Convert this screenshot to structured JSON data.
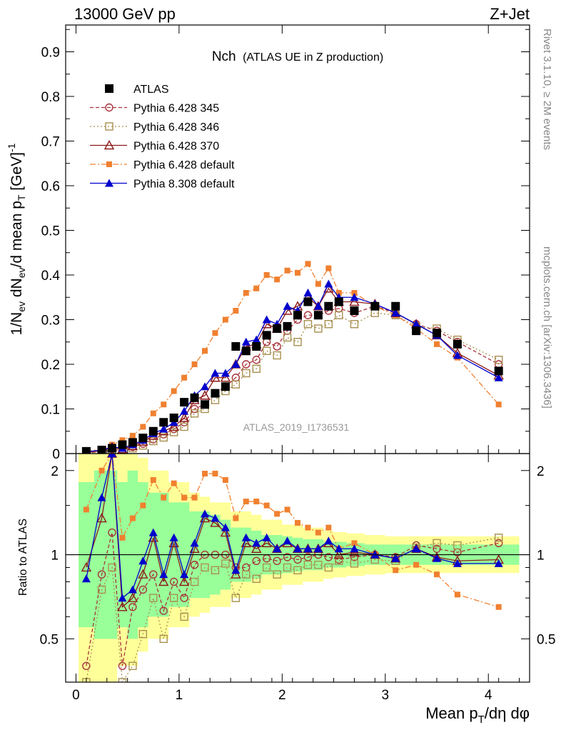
{
  "header": {
    "left": "13000 GeV pp",
    "right": "Z+Jet"
  },
  "side_text": {
    "rivet": "Rivet 3.1.10, ≥ 2M events",
    "mcplots": "mcplots.cern.ch [arXiv:1306.3436]"
  },
  "watermark": "ATLAS_2019_I1736531",
  "chart_data": {
    "type": "scatter",
    "title": "Nch",
    "title_note": "(ATLAS UE in Z production)",
    "ylabel_upper": "1/N_ev dN_ev/d mean p_T [GeV]^-1",
    "ylabel_lower": "Ratio to ATLAS",
    "xlabel": "Mean p_T/dη dφ",
    "xlim": [
      -0.1,
      4.4
    ],
    "ylim_upper": [
      0,
      0.96
    ],
    "ylim_lower": [
      0.35,
      2.3
    ],
    "ratio_scale": "log",
    "xticks": [
      "0",
      "1",
      "2",
      "3",
      "4"
    ],
    "yticks_upper": [
      "0",
      "0.1",
      "0.2",
      "0.3",
      "0.4",
      "0.5",
      "0.6",
      "0.7",
      "0.8",
      "0.9"
    ],
    "yticks_lower": [
      "0.5",
      "1",
      "2"
    ],
    "x": [
      0.1,
      0.25,
      0.35,
      0.45,
      0.55,
      0.65,
      0.75,
      0.85,
      0.95,
      1.05,
      1.15,
      1.25,
      1.35,
      1.45,
      1.55,
      1.65,
      1.75,
      1.85,
      1.95,
      2.05,
      2.15,
      2.25,
      2.35,
      2.45,
      2.55,
      2.7,
      2.9,
      3.1,
      3.3,
      3.5,
      3.7,
      4.1
    ],
    "series": [
      {
        "name": "ATLAS",
        "color": "#000000",
        "marker": "filled-square",
        "values": [
          0.005,
          0.008,
          0.012,
          0.02,
          0.025,
          0.035,
          0.05,
          0.07,
          0.08,
          0.115,
          0.125,
          0.11,
          0.135,
          0.15,
          0.24,
          0.23,
          0.24,
          0.265,
          0.28,
          0.285,
          0.31,
          0.34,
          0.31,
          0.33,
          0.34,
          0.32,
          0.33,
          0.33,
          0.275,
          0.27,
          0.245,
          0.185
        ],
        "ratio": [
          1,
          1,
          1,
          1,
          1,
          1,
          1,
          1,
          1,
          1,
          1,
          1,
          1,
          1,
          1,
          1,
          1,
          1,
          1,
          1,
          1,
          1,
          1,
          1,
          1,
          1,
          1,
          1,
          1,
          1,
          1,
          1
        ]
      },
      {
        "name": "Pythia 6.428 345",
        "color": "#a8343c",
        "marker": "open-circle",
        "values": [
          0.002,
          0.004,
          0.01,
          0.008,
          0.015,
          0.022,
          0.032,
          0.043,
          0.055,
          0.07,
          0.1,
          0.11,
          0.135,
          0.15,
          0.17,
          0.2,
          0.21,
          0.25,
          0.24,
          0.275,
          0.3,
          0.31,
          0.31,
          0.32,
          0.325,
          0.315,
          0.33,
          0.315,
          0.29,
          0.275,
          0.25,
          0.2
        ],
        "ratio": [
          0.4,
          0.85,
          1.2,
          0.4,
          0.65,
          0.75,
          0.85,
          0.63,
          0.8,
          0.7,
          0.92,
          1.0,
          1.0,
          1.0,
          0.9,
          0.9,
          0.95,
          0.97,
          0.95,
          0.98,
          0.96,
          0.98,
          1.0,
          0.98,
          0.96,
          0.98,
          1.0,
          0.98,
          1.08,
          1.05,
          1.02,
          1.1
        ]
      },
      {
        "name": "Pythia 6.428 346",
        "color": "#a89050",
        "marker": "open-square",
        "values": [
          0.002,
          0.004,
          0.008,
          0.007,
          0.012,
          0.018,
          0.028,
          0.036,
          0.048,
          0.06,
          0.09,
          0.1,
          0.12,
          0.14,
          0.155,
          0.18,
          0.19,
          0.23,
          0.22,
          0.26,
          0.25,
          0.29,
          0.28,
          0.29,
          0.31,
          0.29,
          0.315,
          0.31,
          0.285,
          0.28,
          0.255,
          0.21
        ],
        "ratio": [
          0.35,
          0.75,
          0.9,
          0.35,
          0.4,
          0.52,
          0.7,
          0.5,
          0.7,
          0.6,
          0.8,
          0.9,
          0.88,
          0.93,
          0.7,
          0.85,
          0.82,
          0.9,
          0.85,
          0.9,
          0.88,
          0.92,
          0.92,
          0.9,
          0.95,
          0.93,
          0.96,
          0.95,
          1.06,
          1.1,
          1.08,
          1.15
        ]
      },
      {
        "name": "Pythia 6.428 370",
        "color": "#8b1a1a",
        "marker": "open-triangle",
        "values": [
          0.003,
          0.006,
          0.014,
          0.01,
          0.017,
          0.027,
          0.04,
          0.05,
          0.06,
          0.08,
          0.12,
          0.13,
          0.17,
          0.17,
          0.2,
          0.24,
          0.245,
          0.29,
          0.28,
          0.32,
          0.33,
          0.35,
          0.33,
          0.37,
          0.34,
          0.34,
          0.335,
          0.315,
          0.29,
          0.265,
          0.225,
          0.175
        ],
        "ratio": [
          0.9,
          1.35,
          2.3,
          0.65,
          0.7,
          0.85,
          1.15,
          0.8,
          1.1,
          0.8,
          1.05,
          1.35,
          1.3,
          1.2,
          0.85,
          1.1,
          1.05,
          1.1,
          1.05,
          1.1,
          1.05,
          1.05,
          1.05,
          1.1,
          1.0,
          1.02,
          1.0,
          0.97,
          1.05,
          0.98,
          0.95,
          0.96
        ]
      },
      {
        "name": "Pythia 6.428 default",
        "color": "#f08030",
        "marker": "filled-square-small",
        "values": [
          0.005,
          0.01,
          0.02,
          0.03,
          0.04,
          0.06,
          0.09,
          0.11,
          0.14,
          0.17,
          0.2,
          0.23,
          0.27,
          0.3,
          0.32,
          0.36,
          0.37,
          0.4,
          0.39,
          0.41,
          0.405,
          0.425,
          0.38,
          0.415,
          0.36,
          0.36,
          0.33,
          0.31,
          0.28,
          0.245,
          0.215,
          0.11
        ],
        "ratio": [
          1.45,
          2.0,
          2.3,
          1.15,
          1.35,
          1.5,
          1.85,
          1.6,
          1.8,
          1.6,
          1.6,
          1.95,
          1.95,
          1.85,
          1.35,
          1.55,
          1.55,
          1.5,
          1.4,
          1.45,
          1.3,
          1.25,
          1.2,
          1.25,
          1.05,
          1.1,
          1.0,
          0.88,
          0.92,
          0.85,
          0.72,
          0.65
        ]
      },
      {
        "name": "Pythia 8.308 default",
        "color": "#0000cc",
        "marker": "filled-triangle",
        "values": [
          0.004,
          0.008,
          0.015,
          0.012,
          0.02,
          0.03,
          0.045,
          0.055,
          0.07,
          0.095,
          0.13,
          0.15,
          0.18,
          0.18,
          0.2,
          0.25,
          0.255,
          0.3,
          0.29,
          0.33,
          0.32,
          0.36,
          0.33,
          0.38,
          0.35,
          0.35,
          0.335,
          0.315,
          0.29,
          0.265,
          0.22,
          0.17
        ],
        "ratio": [
          0.82,
          1.6,
          2.3,
          0.7,
          0.75,
          0.95,
          1.2,
          0.85,
          1.15,
          0.85,
          1.1,
          1.4,
          1.35,
          1.25,
          0.88,
          1.15,
          1.1,
          1.15,
          1.05,
          1.12,
          1.05,
          1.05,
          1.05,
          1.12,
          1.05,
          1.05,
          1.0,
          0.97,
          1.05,
          0.97,
          0.93,
          0.93
        ]
      }
    ],
    "band_inner": [
      0.55,
      0.5,
      0.5,
      0.55,
      0.5,
      0.55,
      0.6,
      0.6,
      0.65,
      0.65,
      0.7,
      0.7,
      0.72,
      0.75,
      0.8,
      0.8,
      0.82,
      0.85,
      0.85,
      0.86,
      0.87,
      0.88,
      0.88,
      0.9,
      0.9,
      0.91,
      0.92,
      0.92,
      0.92,
      0.92,
      0.92,
      0.92
    ],
    "band_outer": [
      0.35,
      0.35,
      0.35,
      0.4,
      0.4,
      0.45,
      0.5,
      0.5,
      0.55,
      0.55,
      0.6,
      0.62,
      0.65,
      0.65,
      0.7,
      0.7,
      0.72,
      0.75,
      0.75,
      0.78,
      0.78,
      0.8,
      0.8,
      0.82,
      0.83,
      0.84,
      0.85,
      0.86,
      0.86,
      0.86,
      0.86,
      0.86
    ]
  }
}
